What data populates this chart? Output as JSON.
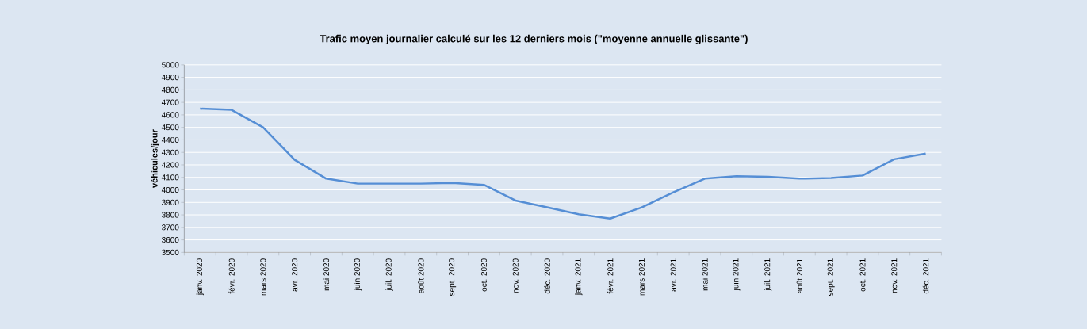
{
  "chart_data": {
    "type": "line",
    "title": "Trafic moyen journalier calculé sur les 12 derniers mois (\"moyenne annuelle glissante\")",
    "ylabel": "véhicules/jour",
    "categories": [
      "janv. 2020",
      "févr. 2020",
      "mars 2020",
      "avr. 2020",
      "mai 2020",
      "juin 2020",
      "juil. 2020",
      "août 2020",
      "sept. 2020",
      "oct. 2020",
      "nov. 2020",
      "déc. 2020",
      "janv. 2021",
      "févr. 2021",
      "mars 2021",
      "avr. 2021",
      "mai 2021",
      "juin 2021",
      "juil. 2021",
      "août 2021",
      "sept. 2021",
      "oct. 2021",
      "nov. 2021",
      "déc. 2021"
    ],
    "values": [
      4650,
      4640,
      4500,
      4240,
      4090,
      4050,
      4050,
      4050,
      4055,
      4040,
      3915,
      3860,
      3805,
      3770,
      3860,
      3980,
      4090,
      4110,
      4105,
      4090,
      4095,
      4115,
      4245,
      4290
    ],
    "color": "#558ed5",
    "ylim": [
      3500,
      5000
    ],
    "yticks": [
      3500,
      3600,
      3700,
      3800,
      3900,
      4000,
      4100,
      4200,
      4300,
      4400,
      4500,
      4600,
      4700,
      4800,
      4900,
      5000
    ],
    "grid": "y"
  }
}
